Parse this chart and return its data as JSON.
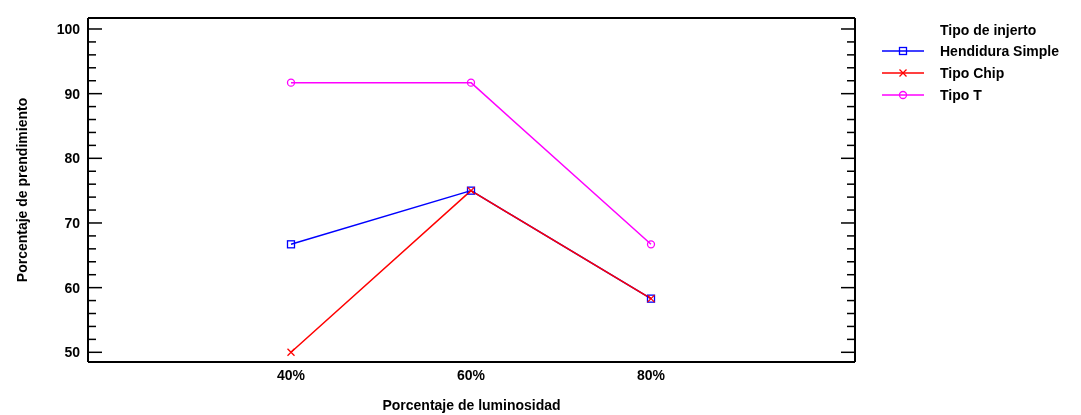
{
  "chart_data": {
    "type": "line",
    "xlabel": "Porcentaje de luminosidad",
    "ylabel": "Porcentaje de prendimiento",
    "legend_title": "Tipo de injerto",
    "categories": [
      "40%",
      "60%",
      "80%"
    ],
    "series": [
      {
        "name": "Hendidura Simple",
        "color": "#0000ff",
        "marker": "square",
        "values": [
          66.7,
          75,
          58.3
        ]
      },
      {
        "name": "Tipo Chip",
        "color": "#ff0000",
        "marker": "cross",
        "values": [
          50,
          75,
          58.3
        ]
      },
      {
        "name": "Tipo T",
        "color": "#ff00ff",
        "marker": "circle",
        "values": [
          91.7,
          91.7,
          66.7
        ]
      }
    ],
    "ylim": [
      48.5,
      101.7
    ],
    "yticks": [
      50,
      {
        "value": 52,
        "label": null
      },
      {
        "value": 54,
        "label": null
      },
      {
        "value": 56,
        "label": null
      },
      {
        "value": 58,
        "label": null
      },
      60,
      {
        "value": 62,
        "label": null
      },
      {
        "value": 64,
        "label": null
      },
      {
        "value": 66,
        "label": null
      },
      {
        "value": 68,
        "label": null
      },
      70,
      {
        "value": 72,
        "label": null
      },
      {
        "value": 74,
        "label": null
      },
      {
        "value": 76,
        "label": null
      },
      {
        "value": 78,
        "label": null
      },
      80,
      {
        "value": 82,
        "label": null
      },
      {
        "value": 84,
        "label": null
      },
      {
        "value": 86,
        "label": null
      },
      {
        "value": 88,
        "label": null
      },
      90,
      {
        "value": 92,
        "label": null
      },
      {
        "value": 94,
        "label": null
      },
      {
        "value": 96,
        "label": null
      },
      {
        "value": 98,
        "label": null
      },
      100
    ],
    "grid": false,
    "legend": "top right",
    "line_style": "solid"
  }
}
